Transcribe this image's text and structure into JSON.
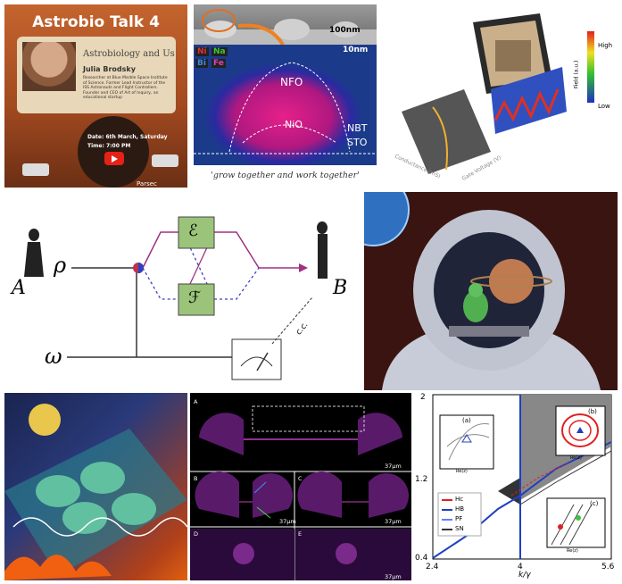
{
  "astrobio": {
    "title": "Astrobio Talk 4",
    "subtitle": "Astrobiology and Us",
    "speaker": "Julia Brodsky",
    "bio": "Researcher at Blue Marble Space Institute of Science. Former Lead Instructor of the ISS Astronauts and Flight Controllers. Founder and CEO of Art of Inquiry, an educational startup",
    "date": "Date: 6th March, Saturday",
    "time": "Time: 7:00 PM",
    "org": "Parsec"
  },
  "nano": {
    "scale_top": "100nm",
    "scale_map": "10nm",
    "elements": [
      "Ni",
      "Na",
      "Bi",
      "Fe"
    ],
    "element_colors": [
      "#e23030",
      "#3cc43c",
      "#3a8ae0",
      "#e040b0"
    ],
    "region_nfo": "NFO",
    "region_nio": "NiO",
    "region_nbt": "NBT",
    "region_sto": "STO",
    "caption": "'grow together and work together'"
  },
  "device": {
    "legend_high": "High",
    "legend_low": "Low",
    "axis_field": "Field (a.u.)",
    "axis_conductance": "Conductance (mS)",
    "axis_gate": "Gate Voltage (V)"
  },
  "quantum": {
    "alice": "A",
    "bob": "B",
    "rho": "ρ",
    "omega": "ω",
    "channel_e": "ℰ",
    "channel_f": "ℱ",
    "cc": "c.c."
  },
  "micro": {
    "panels": [
      "A",
      "B",
      "C",
      "D",
      "E"
    ],
    "scale": "37μm"
  },
  "bifurcation": {
    "y_ticks": [
      "2",
      "1.2",
      "0.4"
    ],
    "x_ticks": [
      "2.4",
      "4",
      "5.6"
    ],
    "x_label": "k/γ",
    "legend": [
      "Hc",
      "HB",
      "PF",
      "SN"
    ],
    "legend_colors": [
      "#e02020",
      "#2040c0",
      "#6080ff",
      "#333333"
    ],
    "inset_a": "(a)",
    "inset_b": "(b)",
    "inset_c": "(c)",
    "inset_ylabel": "Im(z)",
    "inset_xlabel": "Re(z)",
    "inset_a_ticks": [
      "0.07",
      "0",
      "-0.07",
      "-0.04",
      "0",
      "0.04"
    ],
    "inset_b_ticks": [
      "0.5",
      "0",
      "-0.5",
      "0",
      "0.5"
    ],
    "inset_c_ticks": [
      "0.3",
      "0",
      "-0.3",
      "-1",
      "0",
      "1"
    ]
  }
}
